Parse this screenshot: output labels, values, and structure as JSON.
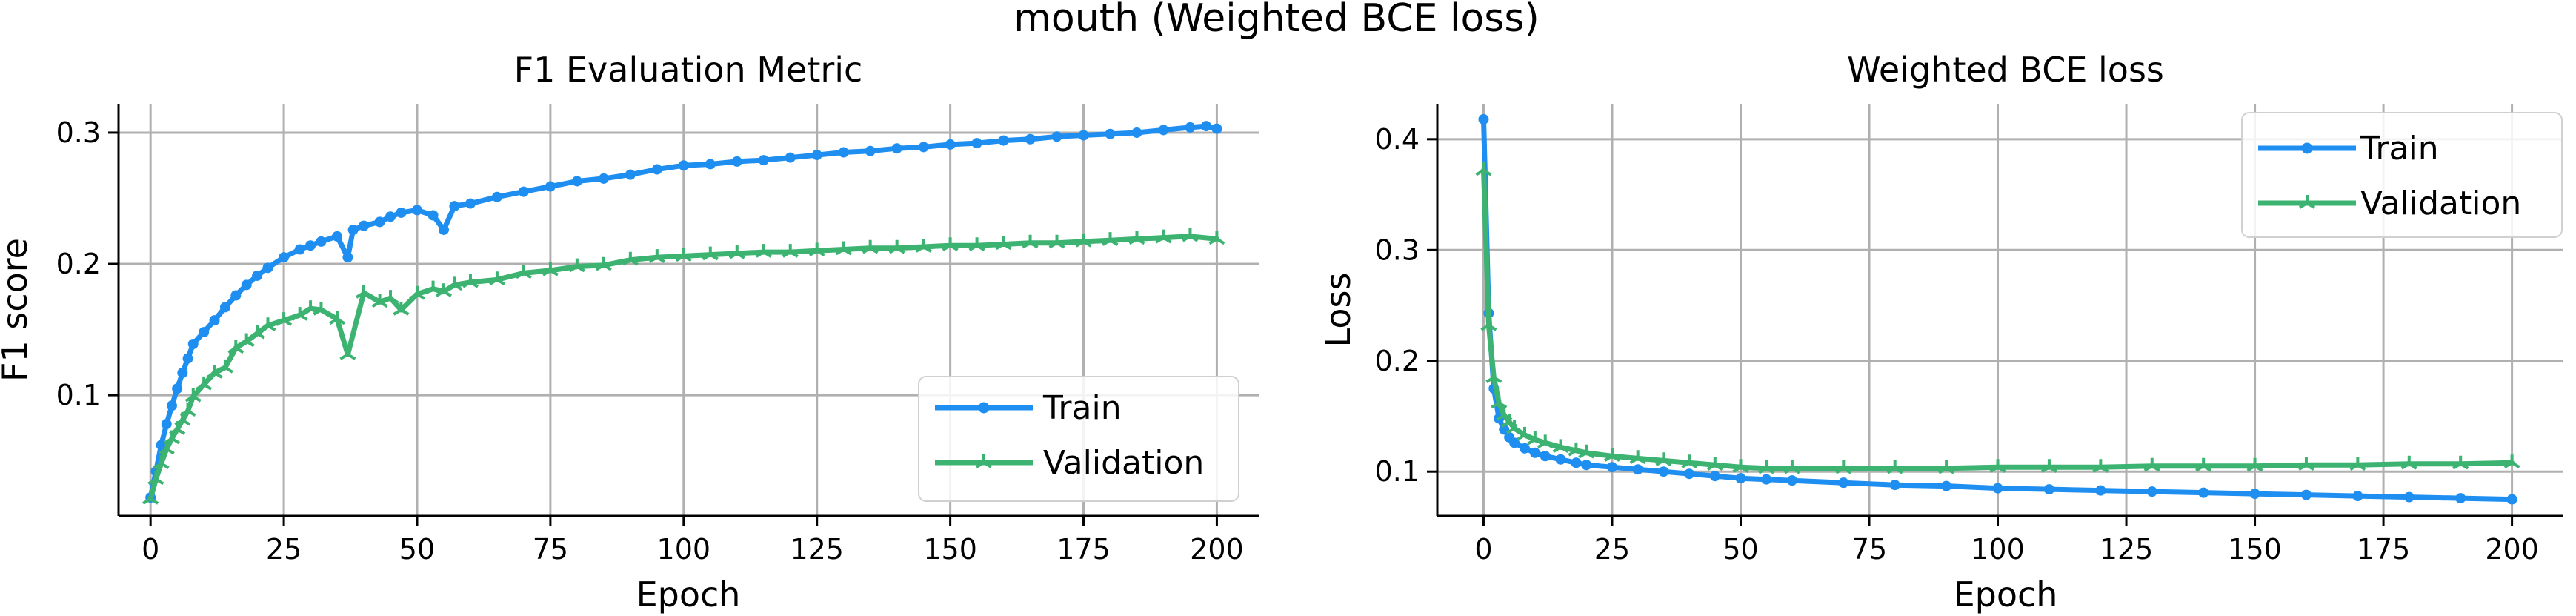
{
  "figure": {
    "suptitle": "mouth (Weighted BCE loss)"
  },
  "colors": {
    "train": "#1f8ef1",
    "validation": "#3cb371",
    "grid": "#b0b0b0"
  },
  "chart_data": [
    {
      "type": "line",
      "title": "F1 Evaluation Metric",
      "xlabel": "Epoch",
      "ylabel": "F1 score",
      "xlim": [
        -6,
        208
      ],
      "ylim": [
        0.008,
        0.322
      ],
      "xticks": [
        0,
        25,
        50,
        75,
        100,
        125,
        150,
        175,
        200
      ],
      "yticks": [
        0.1,
        0.2,
        0.3
      ],
      "ytick_labels": [
        "0.1",
        "0.2",
        "0.3"
      ],
      "grid": true,
      "legend": "lower-right",
      "series": [
        {
          "name": "Train",
          "marker": "dot",
          "x": [
            0,
            1,
            2,
            3,
            4,
            5,
            6,
            7,
            8,
            10,
            12,
            14,
            16,
            18,
            20,
            22,
            25,
            28,
            30,
            32,
            35,
            37,
            38,
            40,
            43,
            45,
            47,
            50,
            53,
            55,
            57,
            60,
            65,
            70,
            75,
            80,
            85,
            90,
            95,
            100,
            105,
            110,
            115,
            120,
            125,
            130,
            135,
            140,
            145,
            150,
            155,
            160,
            165,
            170,
            175,
            180,
            185,
            190,
            195,
            198,
            200
          ],
          "values": [
            0.022,
            0.042,
            0.062,
            0.078,
            0.092,
            0.105,
            0.117,
            0.128,
            0.139,
            0.148,
            0.157,
            0.167,
            0.176,
            0.184,
            0.191,
            0.197,
            0.205,
            0.211,
            0.214,
            0.217,
            0.221,
            0.205,
            0.226,
            0.229,
            0.232,
            0.236,
            0.239,
            0.241,
            0.237,
            0.226,
            0.244,
            0.246,
            0.251,
            0.255,
            0.259,
            0.263,
            0.265,
            0.268,
            0.272,
            0.275,
            0.276,
            0.278,
            0.279,
            0.281,
            0.283,
            0.285,
            0.286,
            0.288,
            0.289,
            0.291,
            0.292,
            0.294,
            0.295,
            0.297,
            0.298,
            0.299,
            0.3,
            0.302,
            0.304,
            0.305,
            0.303
          ]
        },
        {
          "name": "Validation",
          "marker": "tri",
          "x": [
            0,
            1,
            2,
            3,
            4,
            5,
            6,
            7,
            8,
            10,
            12,
            14,
            16,
            18,
            20,
            22,
            25,
            28,
            30,
            32,
            35,
            37,
            40,
            43,
            45,
            47,
            50,
            53,
            55,
            57,
            60,
            65,
            70,
            75,
            80,
            85,
            90,
            95,
            100,
            105,
            110,
            115,
            120,
            125,
            130,
            135,
            140,
            145,
            150,
            155,
            160,
            165,
            170,
            175,
            180,
            185,
            190,
            195,
            200
          ],
          "values": [
            0.021,
            0.036,
            0.048,
            0.059,
            0.067,
            0.074,
            0.081,
            0.088,
            0.099,
            0.108,
            0.117,
            0.121,
            0.136,
            0.141,
            0.147,
            0.153,
            0.157,
            0.161,
            0.166,
            0.165,
            0.158,
            0.131,
            0.178,
            0.171,
            0.174,
            0.165,
            0.177,
            0.181,
            0.179,
            0.184,
            0.186,
            0.188,
            0.193,
            0.195,
            0.198,
            0.199,
            0.203,
            0.205,
            0.206,
            0.207,
            0.208,
            0.209,
            0.209,
            0.21,
            0.211,
            0.212,
            0.212,
            0.213,
            0.214,
            0.214,
            0.215,
            0.216,
            0.216,
            0.217,
            0.218,
            0.219,
            0.22,
            0.221,
            0.219
          ]
        }
      ]
    },
    {
      "type": "line",
      "title": "Weighted BCE loss",
      "xlabel": "Epoch",
      "ylabel": "Loss",
      "xlim": [
        -9,
        210
      ],
      "ylim": [
        0.06,
        0.432
      ],
      "xticks": [
        0,
        25,
        50,
        75,
        100,
        125,
        150,
        175,
        200
      ],
      "yticks": [
        0.1,
        0.2,
        0.3,
        0.4
      ],
      "ytick_labels": [
        "0.1",
        "0.2",
        "0.3",
        "0.4"
      ],
      "grid": true,
      "legend": "upper-right",
      "series": [
        {
          "name": "Train",
          "marker": "dot",
          "x": [
            0,
            1,
            2,
            3,
            4,
            5,
            6,
            8,
            10,
            12,
            15,
            18,
            20,
            25,
            30,
            35,
            40,
            45,
            50,
            55,
            60,
            70,
            80,
            90,
            100,
            110,
            120,
            130,
            140,
            150,
            160,
            170,
            180,
            190,
            200
          ],
          "values": [
            0.418,
            0.243,
            0.175,
            0.148,
            0.138,
            0.131,
            0.126,
            0.121,
            0.117,
            0.114,
            0.111,
            0.108,
            0.106,
            0.104,
            0.102,
            0.1,
            0.098,
            0.096,
            0.094,
            0.093,
            0.092,
            0.09,
            0.088,
            0.087,
            0.085,
            0.084,
            0.083,
            0.082,
            0.081,
            0.08,
            0.079,
            0.078,
            0.077,
            0.076,
            0.075
          ]
        },
        {
          "name": "Validation",
          "marker": "tri",
          "x": [
            0,
            1,
            2,
            3,
            4,
            5,
            6,
            8,
            10,
            12,
            15,
            18,
            20,
            25,
            30,
            35,
            40,
            45,
            50,
            55,
            60,
            70,
            80,
            90,
            100,
            110,
            120,
            130,
            140,
            150,
            160,
            170,
            180,
            190,
            200
          ],
          "values": [
            0.372,
            0.232,
            0.185,
            0.162,
            0.151,
            0.145,
            0.139,
            0.133,
            0.129,
            0.126,
            0.122,
            0.119,
            0.117,
            0.114,
            0.112,
            0.11,
            0.108,
            0.106,
            0.104,
            0.103,
            0.103,
            0.103,
            0.103,
            0.103,
            0.104,
            0.104,
            0.104,
            0.105,
            0.105,
            0.105,
            0.106,
            0.106,
            0.107,
            0.107,
            0.108
          ]
        }
      ]
    }
  ]
}
